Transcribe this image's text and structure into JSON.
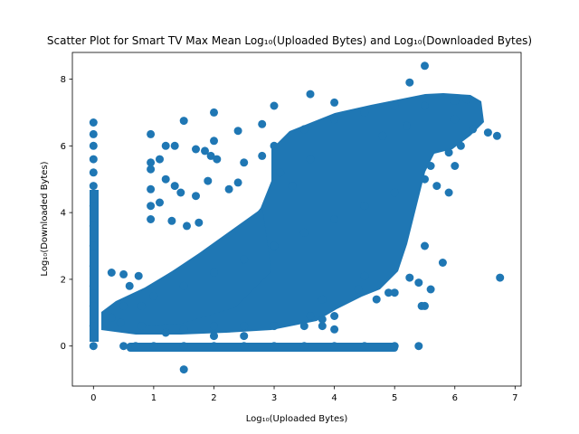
{
  "chart_data": {
    "type": "scatter",
    "title": "Scatter Plot for Smart TV Max Mean Log₁₀(Uploaded Bytes) and Log₁₀(Downloaded Bytes)",
    "xlabel": "Log₁₀(Uploaded Bytes)",
    "ylabel": "Log₁₀(Downloaded Bytes)",
    "xlim": [
      -0.35,
      7.1
    ],
    "ylim": [
      -1.2,
      8.8
    ],
    "xticks": [
      0,
      1,
      2,
      3,
      4,
      5,
      6,
      7
    ],
    "yticks": [
      0,
      2,
      4,
      6,
      8
    ],
    "grid": false,
    "marker_color": "#1f77b4",
    "series": [
      {
        "points": [
          [
            0,
            0
          ],
          [
            0,
            0.6
          ],
          [
            0,
            1.2
          ],
          [
            0,
            1.8
          ],
          [
            0,
            2.4
          ],
          [
            0,
            3.0
          ],
          [
            0,
            3.6
          ],
          [
            0,
            4.2
          ],
          [
            0,
            4.8
          ],
          [
            0,
            5.2
          ],
          [
            0,
            5.6
          ],
          [
            0,
            6.0
          ],
          [
            0,
            6.35
          ],
          [
            0,
            6.7
          ],
          [
            0.3,
            2.2
          ],
          [
            0.5,
            2.15
          ],
          [
            0.3,
            0.85
          ],
          [
            0.45,
            0.7
          ],
          [
            0.6,
            1.8
          ],
          [
            0.75,
            2.1
          ],
          [
            0.5,
            0
          ],
          [
            0.7,
            0
          ],
          [
            0.8,
            1.2
          ],
          [
            0.95,
            6.35
          ],
          [
            0.95,
            5.5
          ],
          [
            0.95,
            5.3
          ],
          [
            0.95,
            4.7
          ],
          [
            0.95,
            4.2
          ],
          [
            0.95,
            3.8
          ],
          [
            1.2,
            6.0
          ],
          [
            1.35,
            6.0
          ],
          [
            1.5,
            6.75
          ],
          [
            1.1,
            5.6
          ],
          [
            1.2,
            5.0
          ],
          [
            1.35,
            4.8
          ],
          [
            1.45,
            4.6
          ],
          [
            1.7,
            5.9
          ],
          [
            1.85,
            5.85
          ],
          [
            2.0,
            7.0
          ],
          [
            2.0,
            6.15
          ],
          [
            1.95,
            5.7
          ],
          [
            2.05,
            5.6
          ],
          [
            1.7,
            4.5
          ],
          [
            1.9,
            4.95
          ],
          [
            2.25,
            4.7
          ],
          [
            2.4,
            6.45
          ],
          [
            2.5,
            5.5
          ],
          [
            2.4,
            4.9
          ],
          [
            1.75,
            3.7
          ],
          [
            1.55,
            3.6
          ],
          [
            1.3,
            3.75
          ],
          [
            1.1,
            4.3
          ],
          [
            1.5,
            -0.7
          ],
          [
            1.0,
            0
          ],
          [
            1.5,
            0
          ],
          [
            2.0,
            0
          ],
          [
            2.5,
            0
          ],
          [
            3.0,
            0
          ],
          [
            3.5,
            0
          ],
          [
            4.0,
            0
          ],
          [
            4.5,
            0
          ],
          [
            5.0,
            0
          ],
          [
            5.4,
            0
          ],
          [
            2.8,
            6.65
          ],
          [
            3.0,
            7.2
          ],
          [
            3.6,
            7.55
          ],
          [
            4.0,
            7.3
          ],
          [
            5.25,
            7.9
          ],
          [
            5.5,
            8.4
          ],
          [
            5.5,
            7.2
          ],
          [
            6.0,
            7.35
          ],
          [
            6.2,
            7.4
          ],
          [
            6.3,
            6.5
          ],
          [
            6.55,
            6.4
          ],
          [
            6.7,
            6.3
          ],
          [
            6.1,
            6.0
          ],
          [
            5.9,
            5.8
          ],
          [
            5.6,
            5.4
          ],
          [
            5.7,
            4.8
          ],
          [
            5.9,
            4.6
          ],
          [
            5.5,
            3.0
          ],
          [
            5.8,
            2.5
          ],
          [
            6.75,
            2.05
          ],
          [
            5.6,
            1.7
          ],
          [
            5.4,
            1.9
          ],
          [
            5.45,
            1.2
          ],
          [
            5.5,
            1.2
          ],
          [
            5.25,
            2.05
          ],
          [
            4.5,
            2.1
          ],
          [
            4.4,
            1.7
          ],
          [
            4.7,
            1.4
          ],
          [
            4.9,
            1.6
          ],
          [
            5.0,
            1.6
          ],
          [
            3.8,
            1.4
          ],
          [
            3.6,
            0.9
          ],
          [
            3.8,
            0.8
          ],
          [
            4.0,
            0.5
          ],
          [
            4.0,
            0.9
          ],
          [
            3.8,
            0.6
          ],
          [
            2.0,
            0.3
          ],
          [
            2.5,
            0.3
          ],
          [
            0.5,
            1.2
          ],
          [
            0.8,
            0.6
          ],
          [
            1.2,
            0.4
          ],
          [
            1.5,
            0.5
          ],
          [
            2.0,
            0.6
          ],
          [
            2.5,
            0.6
          ],
          [
            3.0,
            0.6
          ],
          [
            3.5,
            0.6
          ],
          [
            1.0,
            1.5
          ],
          [
            1.5,
            1.8
          ],
          [
            2.0,
            2.2
          ],
          [
            2.5,
            2.6
          ],
          [
            3.0,
            3.0
          ],
          [
            3.5,
            3.4
          ],
          [
            4.0,
            3.8
          ],
          [
            4.5,
            4.2
          ],
          [
            5.0,
            4.6
          ],
          [
            5.5,
            5.0
          ],
          [
            6.0,
            5.4
          ],
          [
            3.0,
            6.0
          ],
          [
            3.5,
            6.5
          ],
          [
            4.0,
            6.8
          ],
          [
            4.5,
            7.0
          ],
          [
            5.0,
            7.2
          ],
          [
            6.0,
            6.8
          ],
          [
            4.8,
            6.3
          ],
          [
            5.2,
            6.6
          ],
          [
            2.8,
            5.7
          ],
          [
            3.1,
            5.2
          ],
          [
            3.3,
            4.8
          ],
          [
            3.6,
            5.6
          ]
        ]
      }
    ]
  }
}
